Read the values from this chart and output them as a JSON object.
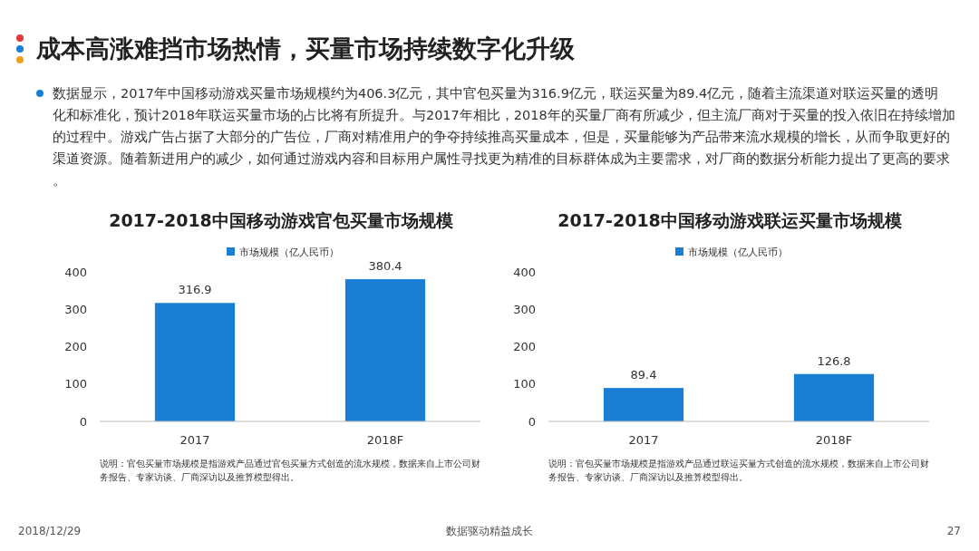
{
  "chart_data": [
    {
      "type": "other",
      "title": "成本高涨难挡市场热情，买量市场持续数字化升级",
      "annotations": [
        "数据显示，2017年中国移动游戏买量市场规模约为406.3亿元，其中官包买量为316.9亿元，联运买量为89.4亿元，随着主流渠道对联运买量的透明化和标准化，预计2018年联运买量市场的占比将有所提升。与2017年相比，2018年的买量厂商有所减少，但主流厂商对于买量的投入依旧在持续增加的过程中。游戏广告占据了大部分的广告位，厂商对精准用户的争夺持续推高买量成本，但是，买量能够为产品带来流水规模的增长，从而争取更好的渠道资源。随着新进用户的减少，如何通过游戏内容和目标用户属性寻找更为精准的目标群体成为主要需求，对厂商的数据分析能力提出了更高的要求。",
        "2018/12/29",
        "数据驱动精益成长",
        "27"
      ]
    },
    {
      "type": "bar",
      "title": "2017-2018中国移动游戏官包买量市场规模",
      "categories": [
        "2017",
        "2018F"
      ],
      "series": [
        {
          "name": "市场规模（亿人民币）",
          "color": "#1a7fd4",
          "values": [
            316.9,
            380.4
          ]
        }
      ],
      "ylim": [
        0,
        400
      ],
      "yticks": [
        0,
        100,
        200,
        300,
        400
      ],
      "data_labels": true,
      "legend": "top",
      "annotations": [
        "说明：官包买量市场规模是指游戏产品通过官包买量方式创造的流水规模，数据来自上市公司财务报告、专家访谈、厂商深访以及推算模型得出。"
      ]
    },
    {
      "type": "bar",
      "title": "2017-2018中国移动游戏联运买量市场规模",
      "categories": [
        "2017",
        "2018F"
      ],
      "series": [
        {
          "name": "市场规模（亿人民币）",
          "color": "#1a7fd4",
          "values": [
            89.4,
            126.8
          ]
        }
      ],
      "ylim": [
        0,
        400
      ],
      "yticks": [
        0,
        100,
        200,
        300,
        400
      ],
      "data_labels": true,
      "legend": "top",
      "annotations": [
        "说明：官包买量市场规模是指游戏产品通过联运买量方式创造的流水规模，数据来自上市公司财务报告、专家访谈、厂商深访以及推算模型得出。"
      ]
    }
  ]
}
